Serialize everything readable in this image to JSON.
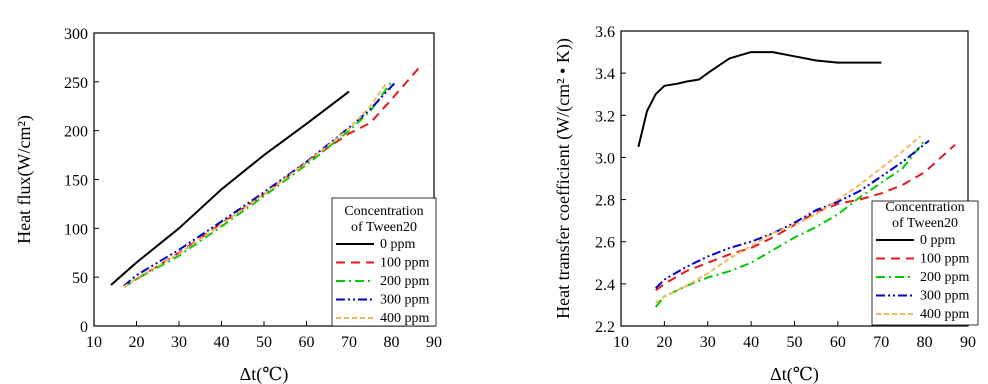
{
  "chart_data": [
    {
      "type": "line",
      "ylabel": "Heat flux(W/cm²)",
      "xlabel": "Δt(℃)",
      "xlim": [
        10,
        90
      ],
      "ylim": [
        0,
        300
      ],
      "xticks": [
        10,
        20,
        30,
        40,
        50,
        60,
        70,
        80,
        90
      ],
      "yticks": [
        0,
        50,
        100,
        150,
        200,
        250,
        300
      ],
      "xtick_labels": [
        "10",
        "20",
        "30",
        "40",
        "50",
        "60",
        "70",
        "80",
        "90"
      ],
      "ytick_labels": [
        "0",
        "50",
        "100",
        "150",
        "200",
        "250",
        "300"
      ],
      "legend_title": [
        "Concentration",
        "of Tween20"
      ],
      "legend_position": "bottom-right",
      "grid": false,
      "series": [
        {
          "name": "0 ppm",
          "color": "#000000",
          "dash": "solid",
          "x": [
            14,
            20,
            30,
            40,
            50,
            60,
            70
          ],
          "y": [
            42,
            65,
            100,
            140,
            175,
            207,
            240
          ]
        },
        {
          "name": "100 ppm",
          "color": "#e41a1c",
          "dash": "dash",
          "x": [
            17,
            20,
            30,
            40,
            50,
            60,
            70,
            75,
            80,
            87
          ],
          "y": [
            40,
            48,
            75,
            105,
            135,
            168,
            197,
            208,
            232,
            267
          ]
        },
        {
          "name": "200 ppm",
          "color": "#00cc00",
          "dash": "dashdot",
          "x": [
            17,
            20,
            30,
            40,
            50,
            60,
            70,
            75,
            80
          ],
          "y": [
            40,
            48,
            72,
            102,
            133,
            165,
            200,
            220,
            250
          ]
        },
        {
          "name": "300 ppm",
          "color": "#0000cc",
          "dash": "dashdotdot",
          "x": [
            17,
            20,
            30,
            40,
            50,
            60,
            70,
            75,
            81
          ],
          "y": [
            41,
            52,
            78,
            107,
            137,
            168,
            203,
            222,
            250
          ]
        },
        {
          "name": "400 ppm",
          "color": "#f2b862",
          "dash": "shortdash",
          "x": [
            17,
            20,
            30,
            40,
            50,
            60,
            70,
            75,
            79
          ],
          "y": [
            40,
            49,
            74,
            104,
            135,
            167,
            202,
            225,
            250
          ]
        }
      ]
    },
    {
      "type": "line",
      "ylabel": "Heat transfer coefficient (W/(cm² • K))",
      "xlabel": "Δt(℃)",
      "xlim": [
        10,
        90
      ],
      "ylim": [
        2.2,
        3.6
      ],
      "xticks": [
        10,
        20,
        30,
        40,
        50,
        60,
        70,
        80,
        90
      ],
      "yticks": [
        2.2,
        2.4,
        2.6,
        2.8,
        3.0,
        3.2,
        3.4,
        3.6
      ],
      "xtick_labels": [
        "10",
        "20",
        "30",
        "40",
        "50",
        "60",
        "70",
        "80",
        "90"
      ],
      "ytick_labels": [
        "2.2",
        "2.4",
        "2.6",
        "2.8",
        "3.0",
        "3.2",
        "3.4",
        "3.6"
      ],
      "legend_title": [
        "Concentration",
        "of Tween20"
      ],
      "legend_position": "bottom-right",
      "grid": false,
      "series": [
        {
          "name": "0 ppm",
          "color": "#000000",
          "dash": "solid",
          "x": [
            14,
            16,
            18,
            20,
            23,
            25,
            28,
            30,
            35,
            40,
            45,
            50,
            55,
            60,
            65,
            70
          ],
          "y": [
            3.05,
            3.22,
            3.3,
            3.34,
            3.35,
            3.36,
            3.37,
            3.4,
            3.47,
            3.5,
            3.5,
            3.48,
            3.46,
            3.45,
            3.45,
            3.45
          ]
        },
        {
          "name": "100 ppm",
          "color": "#e41a1c",
          "dash": "dash",
          "x": [
            18,
            20,
            25,
            30,
            35,
            40,
            45,
            50,
            55,
            60,
            65,
            70,
            75,
            80,
            87
          ],
          "y": [
            2.37,
            2.4,
            2.46,
            2.5,
            2.54,
            2.57,
            2.62,
            2.68,
            2.74,
            2.78,
            2.8,
            2.83,
            2.87,
            2.93,
            3.06
          ]
        },
        {
          "name": "200 ppm",
          "color": "#00cc00",
          "dash": "dashdot",
          "x": [
            18,
            20,
            25,
            30,
            35,
            40,
            45,
            50,
            55,
            60,
            65,
            70,
            75,
            80
          ],
          "y": [
            2.29,
            2.34,
            2.39,
            2.43,
            2.46,
            2.5,
            2.56,
            2.62,
            2.67,
            2.73,
            2.81,
            2.88,
            2.95,
            3.08
          ]
        },
        {
          "name": "300 ppm",
          "color": "#0000cc",
          "dash": "dashdotdot",
          "x": [
            18,
            20,
            25,
            30,
            35,
            40,
            45,
            50,
            55,
            60,
            65,
            70,
            75,
            81
          ],
          "y": [
            2.38,
            2.42,
            2.48,
            2.53,
            2.57,
            2.6,
            2.64,
            2.69,
            2.75,
            2.79,
            2.84,
            2.91,
            2.98,
            3.08
          ]
        },
        {
          "name": "400 ppm",
          "color": "#f2b862",
          "dash": "shortdash",
          "x": [
            18,
            20,
            25,
            30,
            35,
            40,
            45,
            50,
            55,
            60,
            65,
            70,
            75,
            79
          ],
          "y": [
            2.31,
            2.34,
            2.39,
            2.45,
            2.52,
            2.58,
            2.64,
            2.68,
            2.73,
            2.8,
            2.87,
            2.95,
            3.03,
            3.1
          ]
        }
      ]
    }
  ]
}
